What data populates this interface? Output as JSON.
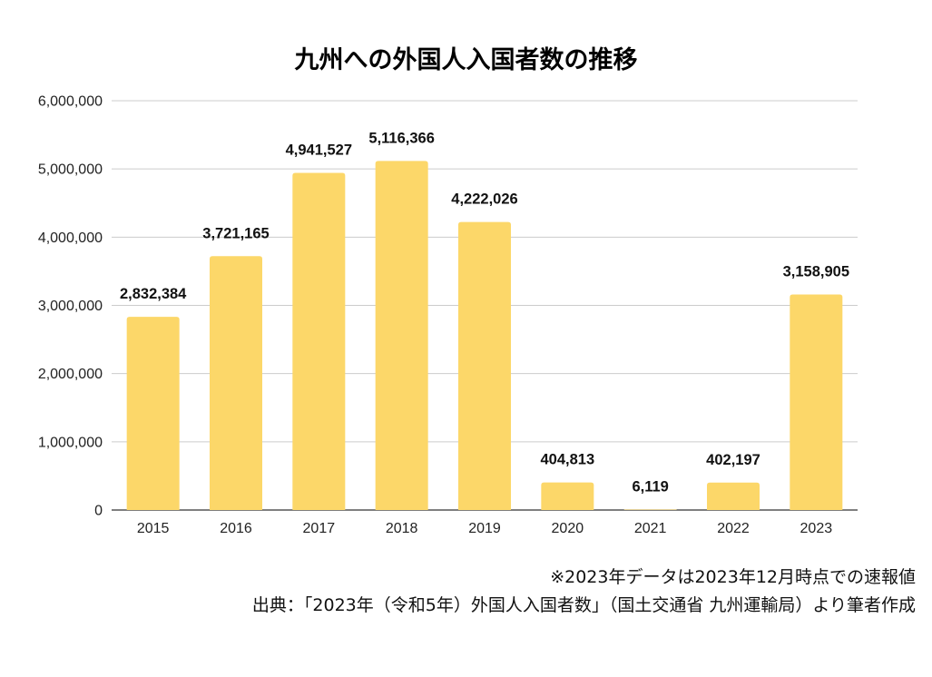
{
  "chart_data": {
    "type": "bar",
    "title": "九州への外国人入国者数の推移",
    "xlabel": "",
    "ylabel": "",
    "categories": [
      "2015",
      "2016",
      "2017",
      "2018",
      "2019",
      "2020",
      "2021",
      "2022",
      "2023"
    ],
    "values": [
      2832384,
      3721165,
      4941527,
      5116366,
      4222026,
      404813,
      6119,
      402197,
      3158905
    ],
    "data_labels": [
      "2,832,384",
      "3,721,165",
      "4,941,527",
      "5,116,366",
      "4,222,026",
      "404,813",
      "6,119",
      "402,197",
      "3,158,905"
    ],
    "ylim": [
      0,
      6000000
    ],
    "yticks": [
      0,
      1000000,
      2000000,
      3000000,
      4000000,
      5000000,
      6000000
    ],
    "ytick_labels": [
      "0",
      "1,000,000",
      "2,000,000",
      "3,000,000",
      "4,000,000",
      "5,000,000",
      "6,000,000"
    ],
    "grid": true,
    "legend": "none",
    "bar_color": "#FCD769"
  },
  "notes": {
    "line1": "※2023年データは2023年12月時点での速報値",
    "line2": "出典：「2023年（令和5年）外国人入国者数」（国土交通省 九州運輸局）より筆者作成"
  }
}
